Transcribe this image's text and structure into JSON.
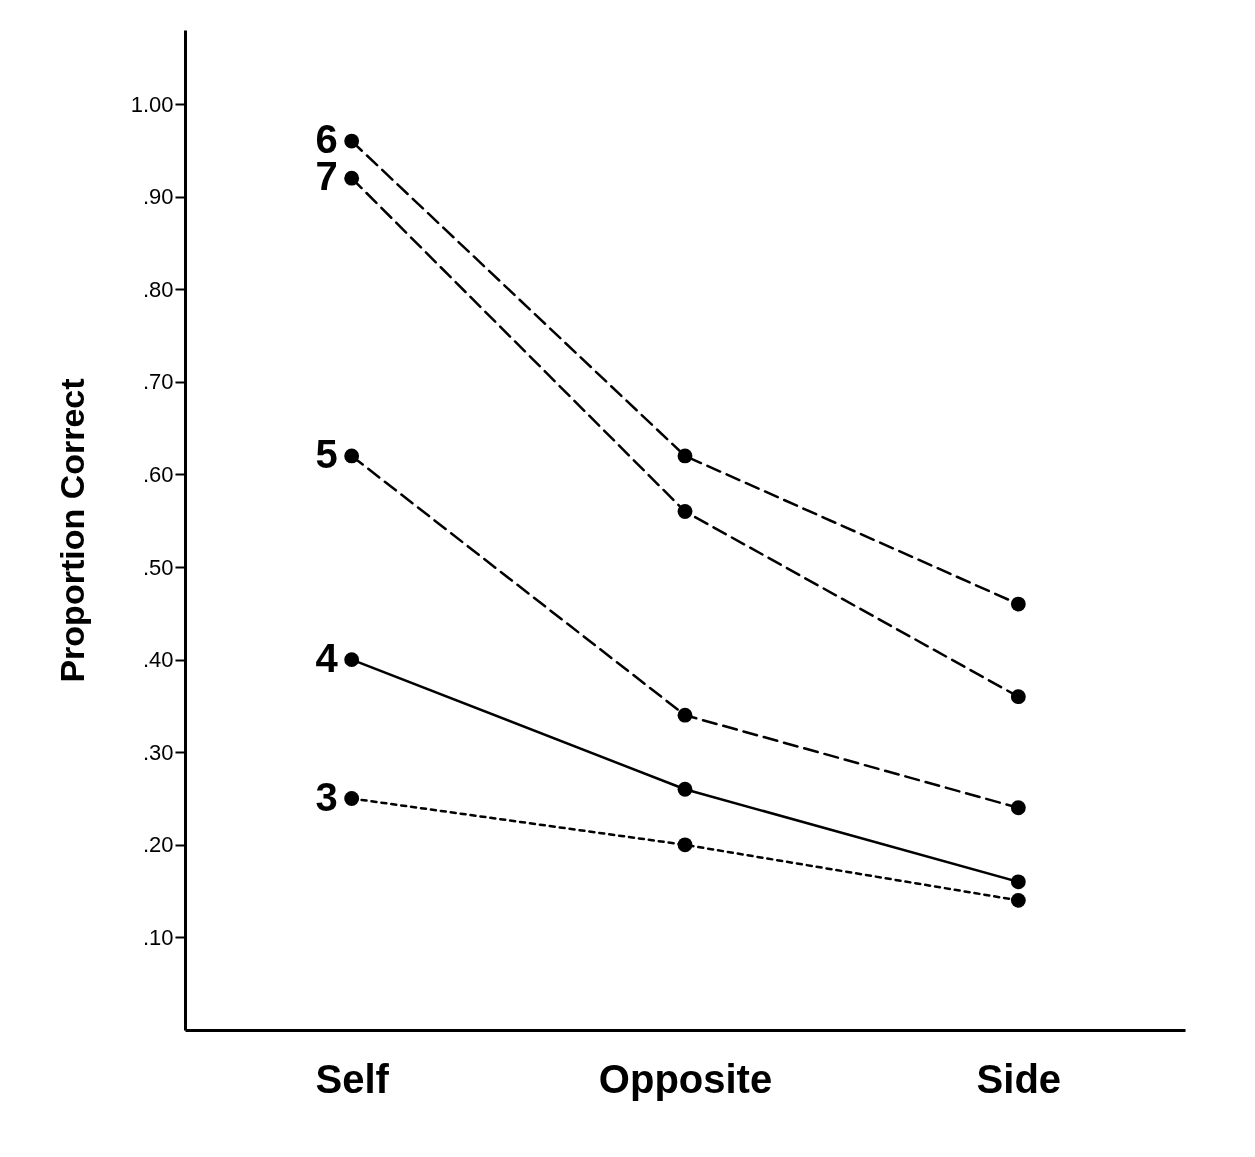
{
  "chart_data": {
    "type": "line",
    "ylabel": "Proportion Correct",
    "categories": [
      "Self",
      "Opposite",
      "Side"
    ],
    "ylim": [
      0,
      1.08
    ],
    "yticks": [
      {
        "value": 0.1,
        "label": ".10"
      },
      {
        "value": 0.2,
        "label": ".20"
      },
      {
        "value": 0.3,
        "label": ".30"
      },
      {
        "value": 0.4,
        "label": ".40"
      },
      {
        "value": 0.5,
        "label": ".50"
      },
      {
        "value": 0.6,
        "label": ".60"
      },
      {
        "value": 0.7,
        "label": ".70"
      },
      {
        "value": 0.8,
        "label": ".80"
      },
      {
        "value": 0.9,
        "label": ".90"
      },
      {
        "value": 1.0,
        "label": "1.00"
      }
    ],
    "series": [
      {
        "name": "6",
        "color": "#000000",
        "line_style": "dashed",
        "values": [
          0.96,
          0.62,
          0.46
        ]
      },
      {
        "name": "7",
        "color": "#000000",
        "line_style": "dashed",
        "values": [
          0.92,
          0.56,
          0.36
        ]
      },
      {
        "name": "5",
        "color": "#000000",
        "line_style": "dashed",
        "values": [
          0.62,
          0.34,
          0.24
        ]
      },
      {
        "name": "4",
        "color": "#000000",
        "line_style": "solid",
        "values": [
          0.4,
          0.26,
          0.16
        ]
      },
      {
        "name": "3",
        "color": "#000000",
        "line_style": "dotted",
        "values": [
          0.25,
          0.2,
          0.14
        ]
      }
    ],
    "marker": "circle",
    "grid": false,
    "legend": false
  }
}
